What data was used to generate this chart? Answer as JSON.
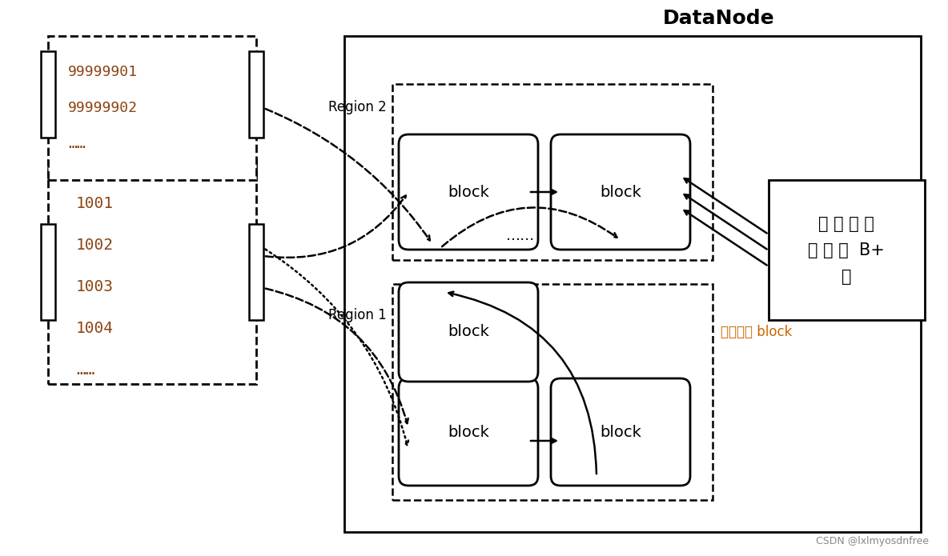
{
  "bg_color": "#ffffff",
  "title_text": "DataNode",
  "region1_label": "Region 1",
  "region2_label": "Region 2",
  "chain_label": "链表连接 block",
  "index_label": "单 独 索 引\n结 构 ：  B+\n树",
  "left_box1_numbers": [
    "1001",
    "1002",
    "1003",
    "1004",
    "……"
  ],
  "left_box2_numbers": [
    "99999901",
    "99999902",
    "……"
  ],
  "block_label": "block",
  "dotted_label": "……",
  "footnote": "CSDN @lxlmyosdnfree",
  "num_color": "#8B4513",
  "orange_color": "#CC6600",
  "black": "#000000",
  "gray": "#888888"
}
